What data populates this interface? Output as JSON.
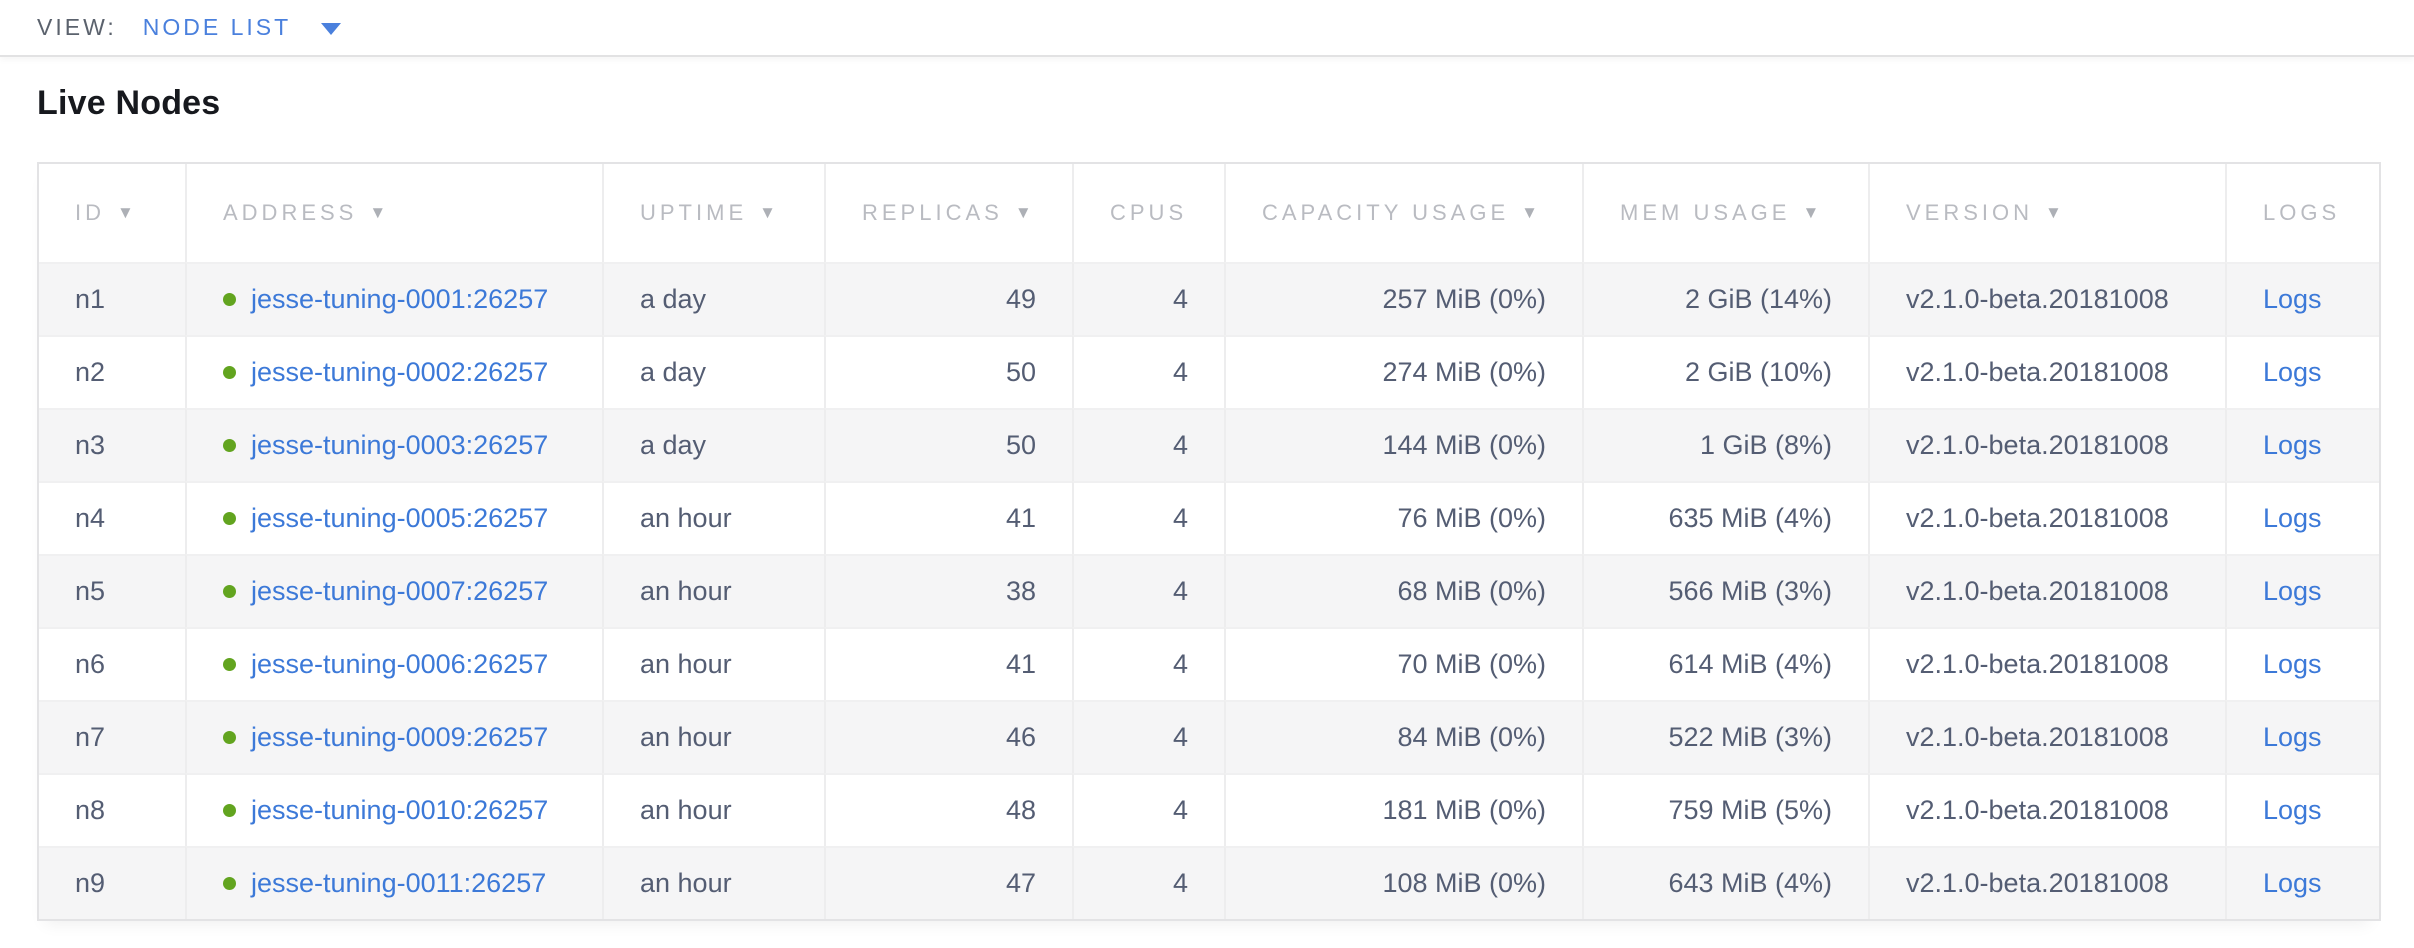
{
  "view_bar": {
    "label": "VIEW:",
    "selected": "NODE LIST"
  },
  "page": {
    "title": "Live Nodes"
  },
  "icons": {
    "sort_desc": "▼",
    "dropdown_caret": "caret-down",
    "status_dot": "green-circle"
  },
  "colors": {
    "link_blue": "#3c79d8",
    "dropdown_blue": "#4a80dd",
    "status_green": "#62a41f",
    "header_gray": "#b9bbc1",
    "text_slate": "#545d73",
    "row_stripe": "#f5f5f6"
  },
  "table": {
    "columns": [
      {
        "key": "id",
        "label": "ID",
        "sort_arrow": true
      },
      {
        "key": "address",
        "label": "ADDRESS",
        "sort_arrow": true
      },
      {
        "key": "uptime",
        "label": "UPTIME",
        "sort_arrow": true
      },
      {
        "key": "replicas",
        "label": "REPLICAS",
        "sort_arrow": true
      },
      {
        "key": "cpus",
        "label": "CPUS",
        "sort_arrow": false
      },
      {
        "key": "capacity_usage",
        "label": "CAPACITY USAGE",
        "sort_arrow": true
      },
      {
        "key": "mem_usage",
        "label": "MEM USAGE",
        "sort_arrow": true
      },
      {
        "key": "version",
        "label": "VERSION",
        "sort_arrow": true
      },
      {
        "key": "logs",
        "label": "LOGS",
        "sort_arrow": false
      }
    ],
    "rows": [
      {
        "id": "n1",
        "address": "jesse-tuning-0001:26257",
        "status": "live",
        "uptime": "a day",
        "replicas": "49",
        "cpus": "4",
        "capacity_usage": "257 MiB (0%)",
        "mem_usage": "2 GiB (14%)",
        "version": "v2.1.0-beta.20181008",
        "logs": "Logs"
      },
      {
        "id": "n2",
        "address": "jesse-tuning-0002:26257",
        "status": "live",
        "uptime": "a day",
        "replicas": "50",
        "cpus": "4",
        "capacity_usage": "274 MiB (0%)",
        "mem_usage": "2 GiB (10%)",
        "version": "v2.1.0-beta.20181008",
        "logs": "Logs"
      },
      {
        "id": "n3",
        "address": "jesse-tuning-0003:26257",
        "status": "live",
        "uptime": "a day",
        "replicas": "50",
        "cpus": "4",
        "capacity_usage": "144 MiB (0%)",
        "mem_usage": "1 GiB (8%)",
        "version": "v2.1.0-beta.20181008",
        "logs": "Logs"
      },
      {
        "id": "n4",
        "address": "jesse-tuning-0005:26257",
        "status": "live",
        "uptime": "an hour",
        "replicas": "41",
        "cpus": "4",
        "capacity_usage": "76 MiB (0%)",
        "mem_usage": "635 MiB (4%)",
        "version": "v2.1.0-beta.20181008",
        "logs": "Logs"
      },
      {
        "id": "n5",
        "address": "jesse-tuning-0007:26257",
        "status": "live",
        "uptime": "an hour",
        "replicas": "38",
        "cpus": "4",
        "capacity_usage": "68 MiB (0%)",
        "mem_usage": "566 MiB (3%)",
        "version": "v2.1.0-beta.20181008",
        "logs": "Logs"
      },
      {
        "id": "n6",
        "address": "jesse-tuning-0006:26257",
        "status": "live",
        "uptime": "an hour",
        "replicas": "41",
        "cpus": "4",
        "capacity_usage": "70 MiB (0%)",
        "mem_usage": "614 MiB (4%)",
        "version": "v2.1.0-beta.20181008",
        "logs": "Logs"
      },
      {
        "id": "n7",
        "address": "jesse-tuning-0009:26257",
        "status": "live",
        "uptime": "an hour",
        "replicas": "46",
        "cpus": "4",
        "capacity_usage": "84 MiB (0%)",
        "mem_usage": "522 MiB (3%)",
        "version": "v2.1.0-beta.20181008",
        "logs": "Logs"
      },
      {
        "id": "n8",
        "address": "jesse-tuning-0010:26257",
        "status": "live",
        "uptime": "an hour",
        "replicas": "48",
        "cpus": "4",
        "capacity_usage": "181 MiB (0%)",
        "mem_usage": "759 MiB (5%)",
        "version": "v2.1.0-beta.20181008",
        "logs": "Logs"
      },
      {
        "id": "n9",
        "address": "jesse-tuning-0011:26257",
        "status": "live",
        "uptime": "an hour",
        "replicas": "47",
        "cpus": "4",
        "capacity_usage": "108 MiB (0%)",
        "mem_usage": "643 MiB (4%)",
        "version": "v2.1.0-beta.20181008",
        "logs": "Logs"
      }
    ]
  }
}
